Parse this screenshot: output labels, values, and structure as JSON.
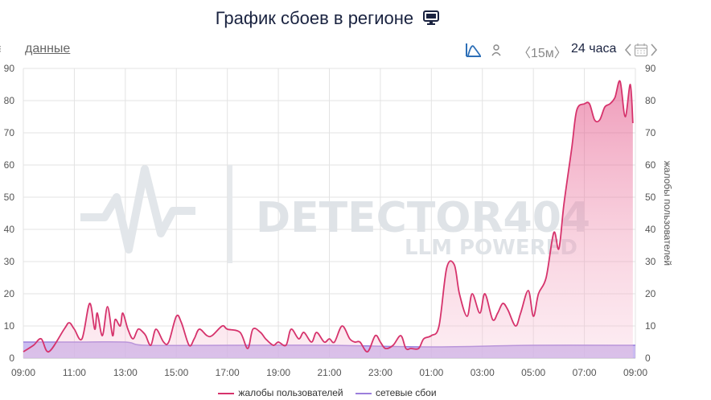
{
  "header": {
    "title": "График сбоев в регионе"
  },
  "toolbar": {
    "data_link": "данные",
    "interval": "〈15м〉",
    "range": "24 часа",
    "icons": [
      "chart-toggle-icon",
      "user-icon",
      "chevron-left-icon",
      "calendar-icon",
      "chevron-right-icon",
      "monitor-icon"
    ]
  },
  "watermark": {
    "main": "DETECTOR404",
    "sub": "LLM POWERED"
  },
  "chart_data": {
    "type": "area",
    "title": "График сбоев в регионе",
    "xlabel": "",
    "ylabel_right": "жалобы пользователей",
    "ylim": [
      0,
      90
    ],
    "yticks": [
      0,
      10,
      20,
      30,
      40,
      50,
      60,
      70,
      80,
      90
    ],
    "x_range": [
      "09:00",
      "09:00"
    ],
    "xticks": [
      "09:00",
      "11:00",
      "13:00",
      "15:00",
      "17:00",
      "19:00",
      "21:00",
      "23:00",
      "01:00",
      "03:00",
      "05:00",
      "07:00",
      "09:00"
    ],
    "grid": true,
    "legend_position": "bottom",
    "colors": {
      "complaints": "#d6336c",
      "network": "#9b7fdc"
    },
    "series": [
      {
        "name": "жалобы пользователей",
        "x_hours": [
          0,
          0.4,
          0.7,
          1.0,
          1.6,
          1.8,
          2.0,
          2.3,
          2.6,
          2.8,
          2.9,
          3.1,
          3.3,
          3.5,
          3.6,
          3.8,
          3.9,
          4.1,
          4.3,
          4.5,
          4.7,
          4.8,
          5.0,
          5.2,
          5.5,
          5.7,
          6.0,
          6.2,
          6.5,
          6.7,
          6.9,
          7.2,
          7.4,
          7.8,
          8.0,
          8.5,
          8.8,
          9.0,
          9.3,
          9.5,
          9.8,
          10.0,
          10.3,
          10.5,
          10.8,
          11.0,
          11.3,
          11.5,
          11.8,
          12.0,
          12.2,
          12.5,
          12.8,
          13.0,
          13.2,
          13.5,
          13.8,
          14.0,
          14.2,
          14.5,
          14.8,
          15.0,
          15.2,
          15.5,
          15.7,
          16.0,
          16.3,
          16.6,
          16.9,
          17.1,
          17.4,
          17.6,
          17.9,
          18.1,
          18.4,
          18.6,
          18.8,
          19.0,
          19.3,
          19.5,
          19.8,
          20.0,
          20.2,
          20.5,
          20.8,
          21.0,
          21.2,
          21.5,
          21.7,
          22.0,
          22.2,
          22.4,
          22.6,
          22.8,
          23.0,
          23.2,
          23.4,
          23.6,
          23.8,
          23.9
        ],
        "values": [
          2,
          4,
          6,
          2,
          9,
          11,
          9,
          6,
          17,
          9,
          14,
          7,
          16,
          7,
          12,
          10,
          14,
          9,
          6,
          9,
          8,
          7,
          4,
          9,
          5,
          5,
          13,
          11,
          4,
          6,
          9,
          7,
          7,
          10,
          9,
          8,
          3,
          9,
          8,
          6,
          4,
          5,
          4,
          9,
          6,
          8,
          5,
          8,
          5,
          6,
          5,
          10,
          6,
          5,
          5,
          2,
          7,
          5,
          3,
          4,
          7,
          3,
          3,
          3,
          6,
          7,
          10,
          28,
          29,
          20,
          13,
          20,
          14,
          20,
          12,
          14,
          17,
          15,
          10,
          14,
          21,
          13,
          20,
          25,
          39,
          34,
          48,
          65,
          77,
          79,
          79,
          74,
          74,
          78,
          79,
          81,
          86,
          75,
          85,
          73
        ]
      },
      {
        "name": "сетевые сбои",
        "x_hours": [
          0,
          2,
          4,
          4.8,
          8,
          12,
          16,
          20,
          24
        ],
        "values": [
          5,
          5,
          5,
          4,
          4,
          4,
          3.5,
          4,
          4
        ]
      }
    ]
  }
}
